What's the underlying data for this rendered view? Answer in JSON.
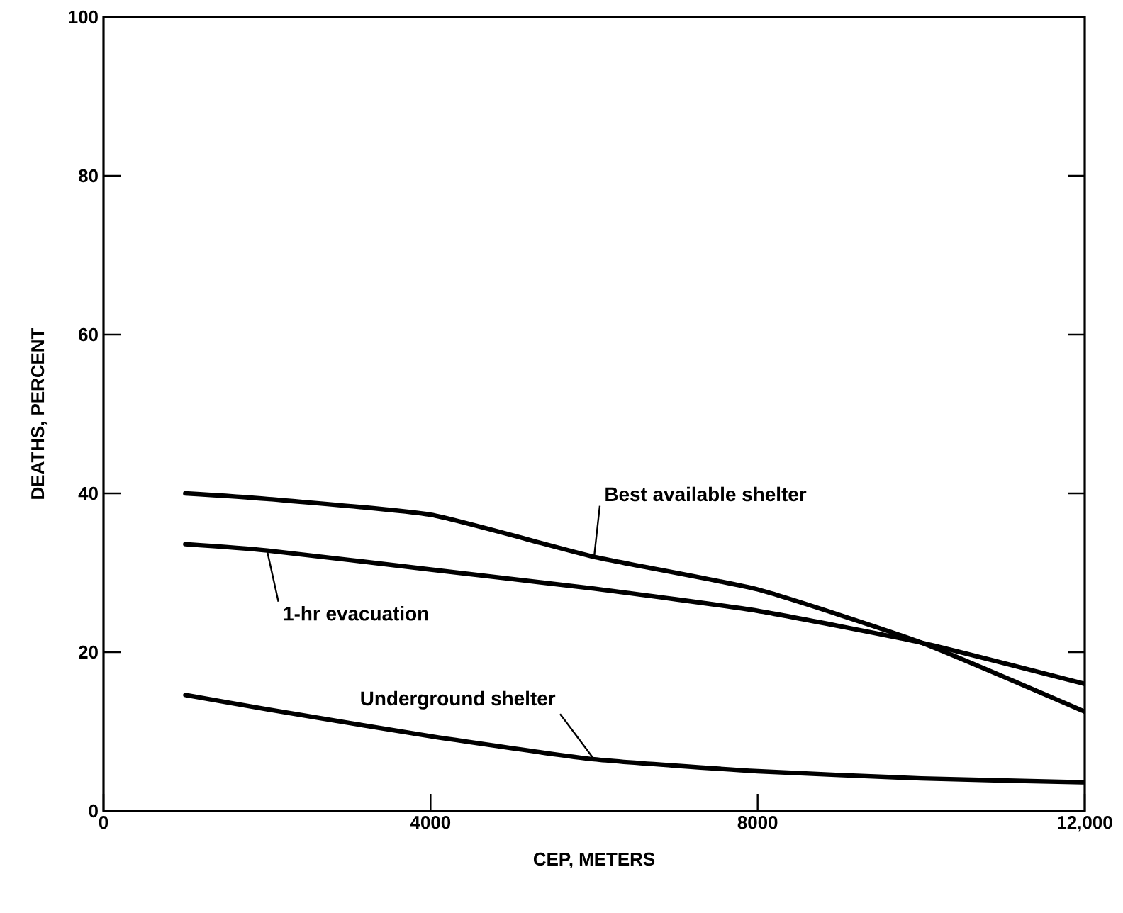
{
  "chart_data": {
    "type": "line",
    "xlabel": "CEP, METERS",
    "ylabel": "DEATHS, PERCENT",
    "xlim": [
      0,
      12000
    ],
    "ylim": [
      0,
      100
    ],
    "xticks": [
      0,
      4000,
      8000,
      {
        "value": 12000,
        "label": "12,000"
      }
    ],
    "yticks": [
      0,
      20,
      40,
      60,
      80,
      100
    ],
    "grid": false,
    "legend": false,
    "marker": "none",
    "line_style": "solid",
    "series": [
      {
        "name": "Best available shelter",
        "color": "#000000",
        "x": [
          1000,
          2000,
          4000,
          6000,
          8000,
          10000,
          12000
        ],
        "values": [
          40,
          39.3,
          37.3,
          32,
          27.9,
          21.2,
          12.5
        ]
      },
      {
        "name": "1-hr evacuation",
        "color": "#000000",
        "x": [
          1000,
          2000,
          4000,
          6000,
          8000,
          10000,
          12000
        ],
        "values": [
          33.6,
          32.8,
          30.4,
          28,
          25.2,
          21.2,
          16
        ]
      },
      {
        "name": "Underground shelter",
        "color": "#000000",
        "x": [
          1000,
          2000,
          4000,
          6000,
          8000,
          10000,
          12000
        ],
        "values": [
          14.6,
          12.8,
          9.4,
          6.5,
          5,
          4.1,
          3.6
        ]
      }
    ]
  }
}
